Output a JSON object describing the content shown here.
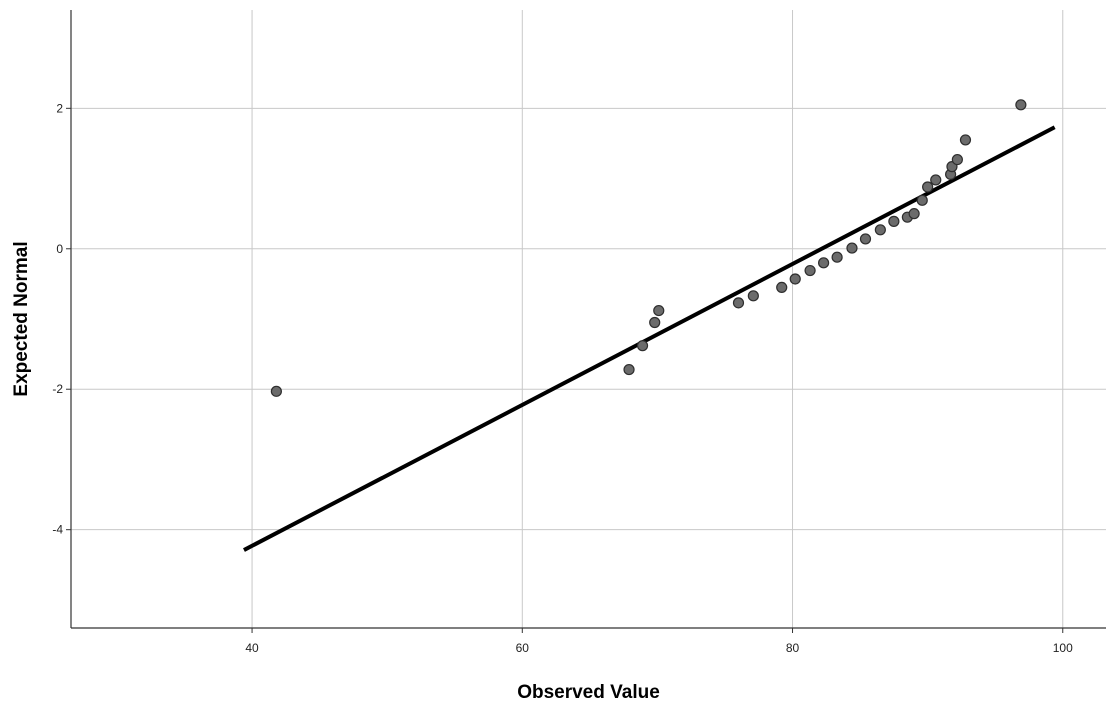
{
  "chart_data": {
    "type": "scatter",
    "title": "",
    "xlabel": "Observed Value",
    "ylabel": "Expected Normal",
    "xlim": [
      26.6,
      103.2
    ],
    "ylim": [
      -5.4,
      3.4
    ],
    "xticks": [
      40,
      60,
      80,
      100
    ],
    "yticks": [
      -4,
      -2,
      0,
      2
    ],
    "grid": true,
    "legend": "none",
    "series": [
      {
        "points": [
          {
            "x": 41.8,
            "y": -2.03
          },
          {
            "x": 67.9,
            "y": -1.72
          },
          {
            "x": 68.9,
            "y": -1.38
          },
          {
            "x": 69.8,
            "y": -1.05
          },
          {
            "x": 70.1,
            "y": -0.88
          },
          {
            "x": 76.0,
            "y": -0.77
          },
          {
            "x": 77.1,
            "y": -0.67
          },
          {
            "x": 79.2,
            "y": -0.55
          },
          {
            "x": 80.2,
            "y": -0.43
          },
          {
            "x": 81.3,
            "y": -0.31
          },
          {
            "x": 82.3,
            "y": -0.2
          },
          {
            "x": 83.3,
            "y": -0.12
          },
          {
            "x": 84.4,
            "y": 0.01
          },
          {
            "x": 85.4,
            "y": 0.14
          },
          {
            "x": 86.5,
            "y": 0.27
          },
          {
            "x": 87.5,
            "y": 0.39
          },
          {
            "x": 88.5,
            "y": 0.45
          },
          {
            "x": 89.0,
            "y": 0.5
          },
          {
            "x": 89.6,
            "y": 0.69
          },
          {
            "x": 90.0,
            "y": 0.88
          },
          {
            "x": 90.6,
            "y": 0.98
          },
          {
            "x": 91.7,
            "y": 1.06
          },
          {
            "x": 91.8,
            "y": 1.17
          },
          {
            "x": 92.2,
            "y": 1.27
          },
          {
            "x": 92.8,
            "y": 1.55
          },
          {
            "x": 96.9,
            "y": 2.05
          }
        ]
      }
    ],
    "reference_line": {
      "x": [
        39.4,
        99.4
      ],
      "y": [
        -4.29,
        1.73
      ]
    },
    "colors": {
      "point_fill": "#6b6b6b",
      "point_stroke": "#2e2e2e",
      "line": "#000000",
      "grid": "#c8c8c8",
      "axis": "#333333"
    }
  }
}
